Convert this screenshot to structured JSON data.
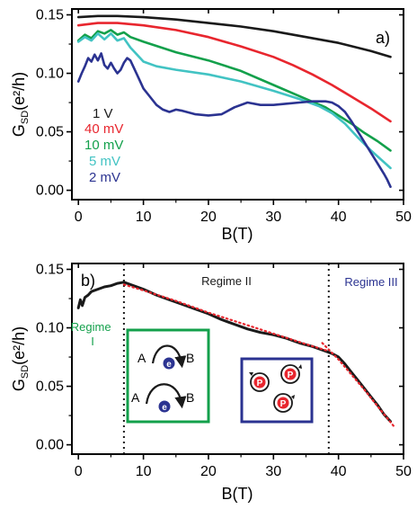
{
  "colors": {
    "black": "#1a1a1a",
    "red": "#e8262e",
    "green": "#13a04b",
    "cyan": "#42c3c3",
    "navy": "#2b3391",
    "regime_green": "#13a04b",
    "regime_navy": "#2b3391",
    "dot_red": "#e8262e"
  },
  "chart_data": [
    {
      "type": "line",
      "panel_label": "a)",
      "xlabel": "B(T)",
      "ylabel": {
        "main": "G",
        "sub": "SD",
        "suffix": "(e²/h)"
      },
      "xlim": [
        -1,
        50
      ],
      "ylim": [
        -0.008,
        0.155
      ],
      "xticks": [
        0,
        10,
        20,
        30,
        40,
        50
      ],
      "yticks": [
        0.0,
        0.05,
        0.1,
        0.15
      ],
      "ytick_labels": [
        "0.00",
        "0.05",
        "0.10",
        "0.15"
      ],
      "legend_placement": "left",
      "series": [
        {
          "name": "1 V",
          "color": "#1a1a1a",
          "x": [
            0,
            3,
            6,
            10,
            15,
            20,
            25,
            30,
            35,
            40,
            45,
            48
          ],
          "y": [
            0.148,
            0.149,
            0.149,
            0.148,
            0.146,
            0.143,
            0.14,
            0.136,
            0.131,
            0.126,
            0.119,
            0.114
          ]
        },
        {
          "name": "40 mV",
          "color": "#e8262e",
          "x": [
            0,
            3,
            6,
            10,
            15,
            20,
            25,
            30,
            33,
            36,
            39,
            42,
            45,
            48
          ],
          "y": [
            0.141,
            0.143,
            0.143,
            0.141,
            0.137,
            0.131,
            0.123,
            0.114,
            0.107,
            0.099,
            0.09,
            0.08,
            0.07,
            0.059
          ]
        },
        {
          "name": "10 mV",
          "color": "#13a04b",
          "x": [
            0,
            1,
            2,
            3,
            4,
            5,
            6,
            7,
            8,
            10,
            15,
            20,
            25,
            30,
            35,
            38,
            40,
            42,
            44,
            46,
            47,
            48
          ],
          "y": [
            0.128,
            0.133,
            0.13,
            0.136,
            0.134,
            0.137,
            0.133,
            0.135,
            0.131,
            0.127,
            0.118,
            0.111,
            0.102,
            0.09,
            0.078,
            0.071,
            0.064,
            0.057,
            0.049,
            0.042,
            0.038,
            0.034
          ]
        },
        {
          "name": "5 mV",
          "color": "#42c3c3",
          "x": [
            0,
            1,
            2,
            3,
            4,
            5,
            6,
            7,
            8,
            9,
            10,
            12,
            15,
            20,
            25,
            30,
            34,
            37,
            39,
            41,
            43,
            45,
            47,
            48
          ],
          "y": [
            0.127,
            0.131,
            0.128,
            0.134,
            0.129,
            0.134,
            0.128,
            0.13,
            0.122,
            0.116,
            0.11,
            0.106,
            0.103,
            0.099,
            0.093,
            0.085,
            0.078,
            0.072,
            0.066,
            0.057,
            0.045,
            0.034,
            0.024,
            0.019
          ]
        },
        {
          "name": "2 mV",
          "color": "#2b3391",
          "x": [
            0,
            0.5,
            1,
            1.5,
            2,
            2.5,
            3,
            3.5,
            4,
            4.5,
            5,
            5.5,
            6,
            6.5,
            7,
            7.5,
            8,
            9,
            10,
            11,
            12,
            13,
            14,
            15,
            16,
            18,
            20,
            22,
            24,
            26,
            28,
            30,
            32,
            34,
            36,
            37,
            38,
            39,
            40,
            41,
            42,
            43,
            44,
            45,
            46,
            47,
            47.5,
            48
          ],
          "y": [
            0.093,
            0.1,
            0.106,
            0.113,
            0.11,
            0.116,
            0.111,
            0.117,
            0.107,
            0.104,
            0.109,
            0.104,
            0.1,
            0.103,
            0.109,
            0.113,
            0.111,
            0.099,
            0.087,
            0.08,
            0.073,
            0.069,
            0.067,
            0.069,
            0.068,
            0.065,
            0.064,
            0.065,
            0.071,
            0.075,
            0.073,
            0.073,
            0.074,
            0.075,
            0.076,
            0.076,
            0.076,
            0.075,
            0.072,
            0.067,
            0.059,
            0.05,
            0.041,
            0.032,
            0.023,
            0.014,
            0.009,
            0.003
          ]
        }
      ]
    },
    {
      "type": "line",
      "panel_label": "b)",
      "xlabel": "B(T)",
      "ylabel": {
        "main": "G",
        "sub": "SD",
        "suffix": "(e²/h)"
      },
      "xlim": [
        -1,
        50
      ],
      "ylim": [
        -0.008,
        0.155
      ],
      "xticks": [
        0,
        10,
        20,
        30,
        40,
        50
      ],
      "yticks": [
        0.0,
        0.05,
        0.1,
        0.15
      ],
      "ytick_labels": [
        "0.00",
        "0.05",
        "0.10",
        "0.15"
      ],
      "vlines": [
        7,
        38.5
      ],
      "series": [
        {
          "name": "",
          "color": "#1a1a1a",
          "style": "solid",
          "x": [
            0,
            0.3,
            0.6,
            1,
            1.5,
            2,
            3,
            4,
            5,
            6,
            7,
            8,
            9,
            10,
            12,
            14,
            16,
            18,
            20,
            22,
            24,
            26,
            28,
            30,
            32,
            34,
            36,
            37,
            38,
            39,
            40,
            41,
            42,
            43,
            44,
            45,
            46,
            47,
            48
          ],
          "y": [
            0.117,
            0.124,
            0.119,
            0.126,
            0.128,
            0.131,
            0.133,
            0.135,
            0.136,
            0.138,
            0.139,
            0.137,
            0.135,
            0.133,
            0.128,
            0.124,
            0.12,
            0.116,
            0.112,
            0.107,
            0.103,
            0.099,
            0.096,
            0.094,
            0.091,
            0.087,
            0.084,
            0.082,
            0.08,
            0.078,
            0.075,
            0.069,
            0.062,
            0.055,
            0.048,
            0.041,
            0.034,
            0.026,
            0.02
          ]
        },
        {
          "name": "",
          "color": "#e8262e",
          "style": "dotted",
          "x": [
            7,
            10,
            15,
            20,
            25,
            30,
            35,
            38.5
          ],
          "y": [
            0.137,
            0.132,
            0.123,
            0.113,
            0.104,
            0.095,
            0.086,
            0.08
          ]
        },
        {
          "name": "",
          "color": "#e8262e",
          "style": "dotted",
          "x": [
            37.5,
            40,
            42,
            44,
            46,
            48.5
          ],
          "y": [
            0.087,
            0.073,
            0.06,
            0.047,
            0.033,
            0.016
          ]
        }
      ],
      "regimes": [
        {
          "label_lines": [
            "Regime",
            "I"
          ],
          "color": "#13a04b"
        },
        {
          "label_lines": [
            "Regime II"
          ],
          "color": "#1a1a1a"
        },
        {
          "label_lines": [
            "Regime III"
          ],
          "color": "#2b3391"
        }
      ],
      "insets": {
        "left": {
          "label_a": "A",
          "label_b": "B",
          "particle": "e",
          "border": "#13a04b",
          "particle_color": "#2b3391"
        },
        "right": {
          "particle": "P",
          "border": "#2b3391",
          "particle_color": "#e8262e"
        }
      }
    }
  ]
}
